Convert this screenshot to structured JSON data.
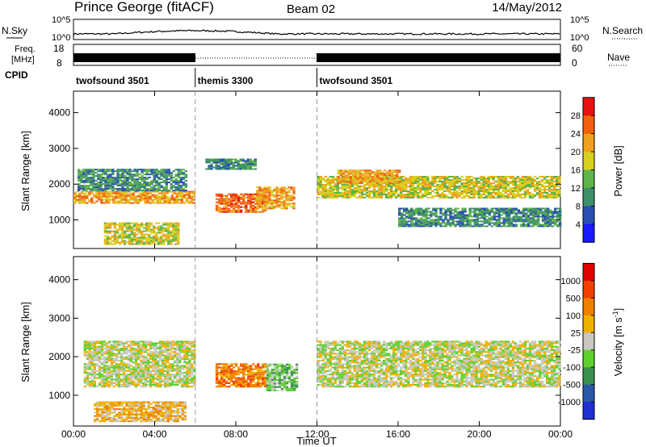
{
  "header": {
    "station": "Prince George (fitACF)",
    "beam": "Beam 02",
    "date": "14/May/2012"
  },
  "top_panel": {
    "nsky_label": "N.Sky",
    "nsky_ticks": [
      "10^5",
      "10^0"
    ],
    "nsky_right_ticks": [
      "10^5",
      "10^0"
    ],
    "nsearch_label": "N.Search",
    "freq_label_line1": "Freq.",
    "freq_label_line2": "[MHz]",
    "freq_ticks": [
      "18",
      "8"
    ],
    "nave_ticks": [
      "60",
      "0"
    ],
    "nave_label": "Nave",
    "cpid_label": "CPID",
    "cpid_segments": [
      {
        "label": "twofsound 3501",
        "start": 0.0,
        "end": 6.0
      },
      {
        "label": "themis 3300",
        "start": 6.0,
        "end": 12.0
      },
      {
        "label": "twofsound 3501",
        "start": 12.0,
        "end": 24.0
      }
    ]
  },
  "chart_data": [
    {
      "type": "heatmap",
      "name": "power",
      "ylabel": "Slant Range [km]",
      "ylim": [
        200,
        4600
      ],
      "yticks": [
        "1000",
        "2000",
        "3000",
        "4000"
      ],
      "xlim": [
        0,
        24
      ],
      "colorbar_label": "Power [dB]",
      "colorbar_ticks": [
        "4",
        "8",
        "12",
        "16",
        "20",
        "24",
        "28"
      ],
      "colorbar_colors": [
        "#1a1aff",
        "#2a4fb0",
        "#3f8f6a",
        "#5fb34a",
        "#d8d020",
        "#f0a020",
        "#f06010",
        "#e81010"
      ],
      "features": [
        {
          "t0": 0.0,
          "t1": 6.0,
          "r0": 1450,
          "r1": 1800,
          "level": 5
        },
        {
          "t0": 0.2,
          "t1": 5.5,
          "r0": 1800,
          "r1": 2400,
          "level": 2
        },
        {
          "t0": 6.5,
          "t1": 9.0,
          "r0": 2400,
          "r1": 2700,
          "level": 2
        },
        {
          "t0": 7.0,
          "t1": 9.5,
          "r0": 1200,
          "r1": 1700,
          "level": 6
        },
        {
          "t0": 9.0,
          "t1": 10.8,
          "r0": 1300,
          "r1": 1900,
          "level": 5
        },
        {
          "t0": 12.0,
          "t1": 24.0,
          "r0": 1600,
          "r1": 2200,
          "level": 4
        },
        {
          "t0": 13.0,
          "t1": 16.0,
          "r0": 2000,
          "r1": 2400,
          "level": 5
        },
        {
          "t0": 16.0,
          "t1": 24.0,
          "r0": 800,
          "r1": 1300,
          "level": 2
        },
        {
          "t0": 1.5,
          "t1": 5.2,
          "r0": 300,
          "r1": 900,
          "level": 4
        }
      ]
    },
    {
      "type": "heatmap",
      "name": "velocity",
      "ylabel": "Slant Range [km]",
      "ylim": [
        200,
        4600
      ],
      "yticks": [
        "1000",
        "2000",
        "3000",
        "4000"
      ],
      "xlim": [
        0,
        24
      ],
      "colorbar_label": "Velocity [m s^-1]",
      "colorbar_ticks": [
        "1000",
        "500",
        "100",
        "25",
        "-25",
        "-100",
        "-500",
        "-1000"
      ],
      "colorbar_colors": [
        "#2030d0",
        "#2a58a8",
        "#3a9050",
        "#60d030",
        "#c8c8c0",
        "#f0b000",
        "#f08000",
        "#f04000",
        "#e00000"
      ],
      "features": [
        {
          "t0": 0.5,
          "t1": 6.0,
          "r0": 1200,
          "r1": 2400,
          "level": 4
        },
        {
          "t0": 12.0,
          "t1": 24.0,
          "r0": 1200,
          "r1": 2400,
          "level": 4
        },
        {
          "t0": 7.0,
          "t1": 9.5,
          "r0": 1200,
          "r1": 1800,
          "level": 6
        },
        {
          "t0": 9.5,
          "t1": 11.0,
          "r0": 1100,
          "r1": 1800,
          "level": 3
        },
        {
          "t0": 1.0,
          "t1": 5.5,
          "r0": 300,
          "r1": 800,
          "level": 5
        }
      ]
    }
  ],
  "x_axis": {
    "ticks": [
      "00:00",
      "04:00",
      "08:00",
      "12:00",
      "16:00",
      "20:00",
      "00:00"
    ],
    "label": "Time UT"
  }
}
